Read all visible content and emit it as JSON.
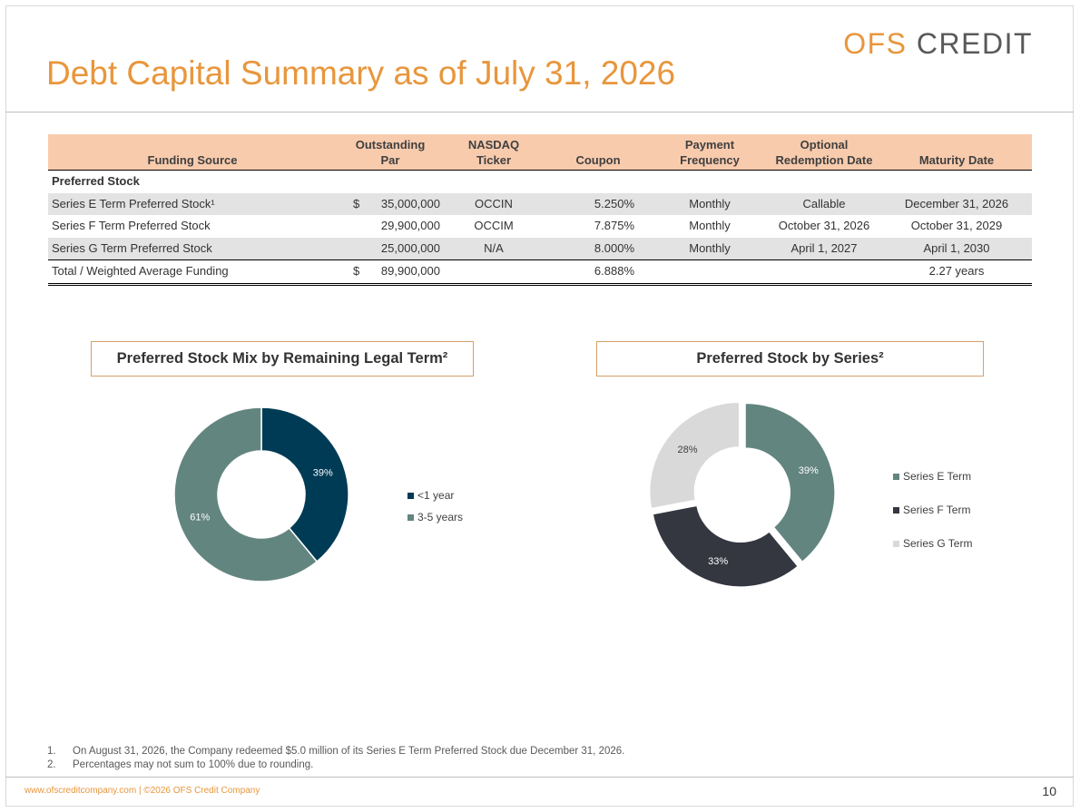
{
  "header": {
    "logo_primary": "OFS",
    "logo_secondary": "CREDIT",
    "title": "Debt Capital Summary as of July 31, 2026"
  },
  "table": {
    "headers": [
      {
        "line1": "",
        "line2": "Funding  Source"
      },
      {
        "line1": "Outstanding",
        "line2": "Par"
      },
      {
        "line1": "NASDAQ",
        "line2": "Ticker"
      },
      {
        "line1": "",
        "line2": "Coupon"
      },
      {
        "line1": "Payment",
        "line2": "Frequency"
      },
      {
        "line1": "Optional",
        "line2": "Redemption Date"
      },
      {
        "line1": "",
        "line2": "Maturity Date"
      }
    ],
    "section_label": "Preferred Stock",
    "rows": [
      {
        "source": "Series E Term Preferred Stock¹",
        "currency": "$",
        "par": "35,000,000",
        "ticker": "OCCIN",
        "coupon": "5.250%",
        "frequency": "Monthly",
        "redemption": "Callable",
        "maturity": "December 31, 2026"
      },
      {
        "source": "Series F Term Preferred Stock",
        "currency": "",
        "par": "29,900,000",
        "ticker": "OCCIM",
        "coupon": "7.875%",
        "frequency": "Monthly",
        "redemption": "October 31, 2026",
        "maturity": "October 31, 2029"
      },
      {
        "source": "Series G Term Preferred Stock",
        "currency": "",
        "par": "25,000,000",
        "ticker": "N/A",
        "coupon": "8.000%",
        "frequency": "Monthly",
        "redemption": "April 1, 2027",
        "maturity": "April 1, 2030"
      }
    ],
    "total": {
      "source": "Total / Weighted Average Funding",
      "currency": "$",
      "par": "89,900,000",
      "coupon": "6.888%",
      "maturity": "2.27 years"
    }
  },
  "chart_data": [
    {
      "type": "pie",
      "title": "Preferred Stock Mix by Remaining Legal Term²",
      "categories": [
        "<1 year",
        "3-5 years"
      ],
      "values": [
        39,
        61
      ],
      "labels": [
        "39%",
        "61%"
      ],
      "colors": [
        "#003b55",
        "#638580"
      ],
      "label_colors": [
        "#ffffff",
        "#ffffff"
      ],
      "legend": "right"
    },
    {
      "type": "pie",
      "title": "Preferred Stock by Series²",
      "categories": [
        "Series E Term",
        "Series F Term",
        "Series G Term"
      ],
      "values": [
        39,
        33,
        28
      ],
      "labels": [
        "39%",
        "33%",
        "28%"
      ],
      "colors": [
        "#638580",
        "#343640",
        "#d9d9d9"
      ],
      "label_colors": [
        "#ffffff",
        "#ffffff",
        "#404040"
      ],
      "exploded": true,
      "legend": "right"
    }
  ],
  "footnotes": [
    {
      "num": "1.",
      "text": "On August 31, 2026, the Company redeemed $5.0 million of its Series E Term Preferred Stock due December 31, 2026."
    },
    {
      "num": "2.",
      "text": "Percentages may not sum to 100% due to rounding."
    }
  ],
  "footer": {
    "text": "www.ofscreditcompany.com |   ©2026 OFS Credit Company",
    "page_number": "10"
  }
}
